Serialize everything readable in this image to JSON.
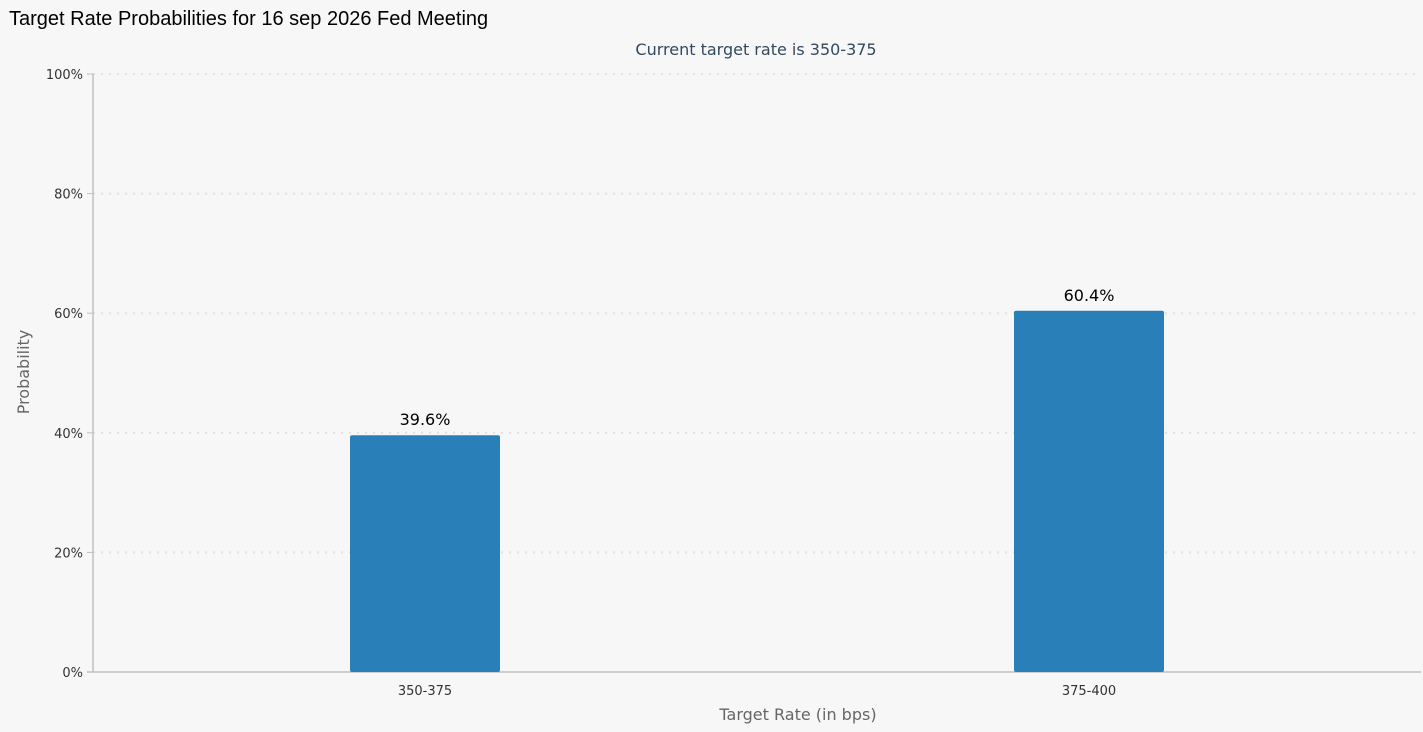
{
  "page": {
    "title": "Target Rate Probabilities for 16 sep 2026 Fed Meeting"
  },
  "chart_data": {
    "type": "bar",
    "subtitle": "Current target rate is 350-375",
    "categories": [
      "350-375",
      "375-400"
    ],
    "values": [
      39.6,
      60.4
    ],
    "data_labels": [
      "39.6%",
      "60.4%"
    ],
    "xlabel": "Target Rate (in bps)",
    "ylabel": "Probability",
    "ylim": [
      0,
      100
    ],
    "y_ticks": [
      0,
      20,
      40,
      60,
      80,
      100
    ],
    "y_tick_labels": [
      "0%",
      "20%",
      "40%",
      "60%",
      "80%",
      "100%"
    ],
    "grid": true,
    "colors": {
      "bar": "#2980b9",
      "subtitle": "#34495e",
      "axis_title": "#666666",
      "tick_label": "#333333",
      "gridline": "#e0e0e0",
      "axis_line": "#c0c0c0"
    }
  }
}
